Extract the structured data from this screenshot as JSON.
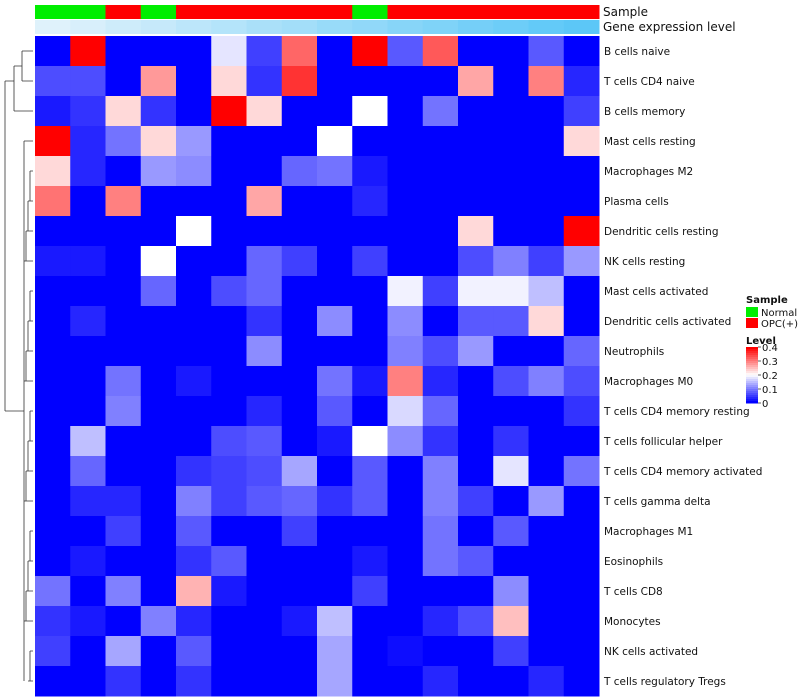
{
  "chart_data": {
    "type": "heatmap",
    "title": "",
    "annotation_rows": [
      "Sample",
      "Gene expression level"
    ],
    "sample_groups": [
      "Normal",
      "Normal",
      "OPC(+)",
      "Normal",
      "OPC(+)",
      "OPC(+)",
      "OPC(+)",
      "OPC(+)",
      "OPC(+)",
      "Normal",
      "OPC(+)",
      "OPC(+)",
      "OPC(+)",
      "OPC(+)",
      "OPC(+)",
      "OPC(+)"
    ],
    "expression_level": [
      0.03,
      0.06,
      0.1,
      0.13,
      0.17,
      0.2,
      0.24,
      0.27,
      0.31,
      0.34,
      0.38,
      0.41,
      0.45,
      0.48,
      0.52,
      0.55
    ],
    "rows": [
      "B cells naive",
      "T cells CD4 naive",
      "B cells memory",
      "Mast cells resting",
      "Macrophages M2",
      "Plasma cells",
      "Dendritic cells resting",
      "NK cells resting",
      "Mast cells activated",
      "Dendritic cells activated",
      "Neutrophils",
      "Macrophages M0",
      "T cells CD4 memory resting",
      "T cells follicular helper",
      "T cells CD4 memory activated",
      "T cells gamma delta",
      "Macrophages M1",
      "Eosinophils",
      "T cells CD8",
      "Monocytes",
      "NK cells activated",
      "T cells regulatory  Tregs"
    ],
    "values": [
      [
        0,
        0.4,
        0,
        0,
        0,
        0.18,
        0.05,
        0.32,
        0,
        0.4,
        0.07,
        0.33,
        0,
        0,
        0.07,
        0
      ],
      [
        0.06,
        0.06,
        0,
        0.28,
        0,
        0.23,
        0.04,
        0.36,
        0,
        0,
        0,
        0,
        0.27,
        0,
        0.3,
        0.03
      ],
      [
        0.02,
        0.04,
        0.23,
        0.04,
        0,
        0.4,
        0.23,
        0,
        0,
        0.2,
        0,
        0.09,
        0,
        0,
        0,
        0.05
      ],
      [
        0.4,
        0.03,
        0.09,
        0.23,
        0.12,
        0,
        0,
        0,
        0.2,
        0,
        0,
        0,
        0,
        0,
        0,
        0.23
      ],
      [
        0.23,
        0.03,
        0,
        0.12,
        0.11,
        0,
        0,
        0.08,
        0.09,
        0.02,
        0,
        0,
        0,
        0,
        0,
        0
      ],
      [
        0.31,
        0,
        0.3,
        0,
        0,
        0,
        0.27,
        0,
        0,
        0.03,
        0,
        0,
        0,
        0,
        0,
        0
      ],
      [
        0,
        0,
        0,
        0,
        0.2,
        0,
        0,
        0,
        0,
        0,
        0,
        0,
        0.23,
        0,
        0,
        0.4
      ],
      [
        0.02,
        0.02,
        0,
        0.2,
        0,
        0,
        0.08,
        0.05,
        0,
        0.05,
        0,
        0,
        0.06,
        0.1,
        0.05,
        0.12
      ],
      [
        0,
        0,
        0,
        0.08,
        0,
        0.06,
        0.08,
        0,
        0,
        0,
        0.19,
        0.05,
        0.19,
        0.19,
        0.15,
        0
      ],
      [
        0,
        0.03,
        0,
        0,
        0,
        0,
        0.04,
        0,
        0.11,
        0,
        0.11,
        0,
        0.07,
        0.07,
        0.23,
        0
      ],
      [
        0,
        0,
        0,
        0,
        0,
        0,
        0.11,
        0,
        0,
        0,
        0.1,
        0.06,
        0.12,
        0,
        0,
        0.08
      ],
      [
        0,
        0,
        0.09,
        0,
        0.02,
        0,
        0,
        0,
        0.09,
        0.02,
        0.3,
        0.03,
        0,
        0.06,
        0.1,
        0.06
      ],
      [
        0,
        0,
        0.1,
        0,
        0,
        0,
        0.03,
        0,
        0.07,
        0,
        0.17,
        0.08,
        0,
        0,
        0,
        0.04
      ],
      [
        0,
        0.15,
        0,
        0,
        0,
        0.06,
        0.07,
        0,
        0.02,
        0.2,
        0.11,
        0.04,
        0,
        0.04,
        0,
        0
      ],
      [
        0,
        0.08,
        0,
        0,
        0.04,
        0.05,
        0.06,
        0.13,
        0,
        0.07,
        0,
        0.1,
        0,
        0.18,
        0,
        0.09
      ],
      [
        0,
        0.03,
        0.03,
        0,
        0.1,
        0.05,
        0.07,
        0.08,
        0.04,
        0.07,
        0,
        0.1,
        0.05,
        0,
        0.12,
        0
      ],
      [
        0,
        0,
        0.05,
        0,
        0.07,
        0,
        0,
        0.05,
        0,
        0,
        0,
        0.09,
        0,
        0.07,
        0,
        0
      ],
      [
        0,
        0.02,
        0,
        0,
        0.04,
        0.07,
        0,
        0,
        0,
        0.02,
        0,
        0.09,
        0.07,
        0,
        0,
        0
      ],
      [
        0.09,
        0,
        0.1,
        0,
        0.26,
        0.02,
        0,
        0,
        0,
        0.05,
        0,
        0,
        0,
        0.11,
        0,
        0
      ],
      [
        0.04,
        0.02,
        0,
        0.1,
        0.03,
        0,
        0,
        0.02,
        0.15,
        0,
        0,
        0.03,
        0.06,
        0.25,
        0,
        0
      ],
      [
        0.05,
        0,
        0.13,
        0,
        0.07,
        0,
        0,
        0,
        0.13,
        0,
        0.01,
        0,
        0,
        0.05,
        0,
        0
      ],
      [
        0,
        0,
        0.04,
        0,
        0.04,
        0,
        0,
        0,
        0.13,
        0,
        0,
        0.03,
        0,
        0,
        0.03,
        0
      ]
    ],
    "color_scale": {
      "min": 0,
      "max": 0.4,
      "low": "#0000ff",
      "mid": "#ffffff",
      "high": "#ff0000",
      "mid_value": 0.2
    },
    "expression_scale": {
      "low": "#e7f4fb",
      "high": "#4fc3f7"
    },
    "group_colors": {
      "Normal": "#00ee00",
      "OPC(+)": "#ff0000"
    },
    "legend_sample": {
      "title": "Sample",
      "items": [
        {
          "label": "Normal"
        },
        {
          "label": "OPC(+)"
        }
      ]
    },
    "legend_level": {
      "title": "Level",
      "ticks": [
        "0.4",
        "0.3",
        "0.2",
        "0.1",
        "0"
      ]
    },
    "row_dendrogram": true
  }
}
